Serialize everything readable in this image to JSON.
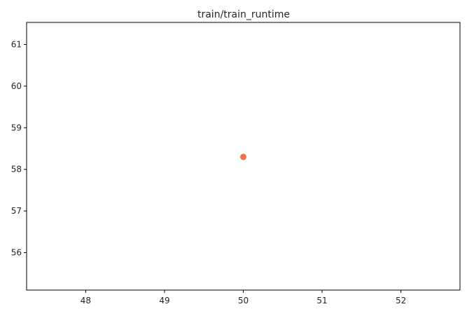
{
  "chart_data": {
    "type": "scatter",
    "title": "train/train_runtime",
    "xlabel": "",
    "ylabel": "",
    "x": [
      50
    ],
    "y": [
      58.3
    ],
    "xlim": [
      47.25,
      52.75
    ],
    "ylim": [
      55.1,
      61.53
    ],
    "xticks": [
      48,
      49,
      50,
      51,
      52
    ],
    "yticks": [
      56,
      57,
      58,
      59,
      60,
      61
    ],
    "xtick_labels": [
      "48",
      "49",
      "50",
      "51",
      "52"
    ],
    "ytick_labels": [
      "56",
      "57",
      "58",
      "59",
      "60",
      "61"
    ],
    "grid": false,
    "legend": "none",
    "point_color": "#f4714a"
  }
}
